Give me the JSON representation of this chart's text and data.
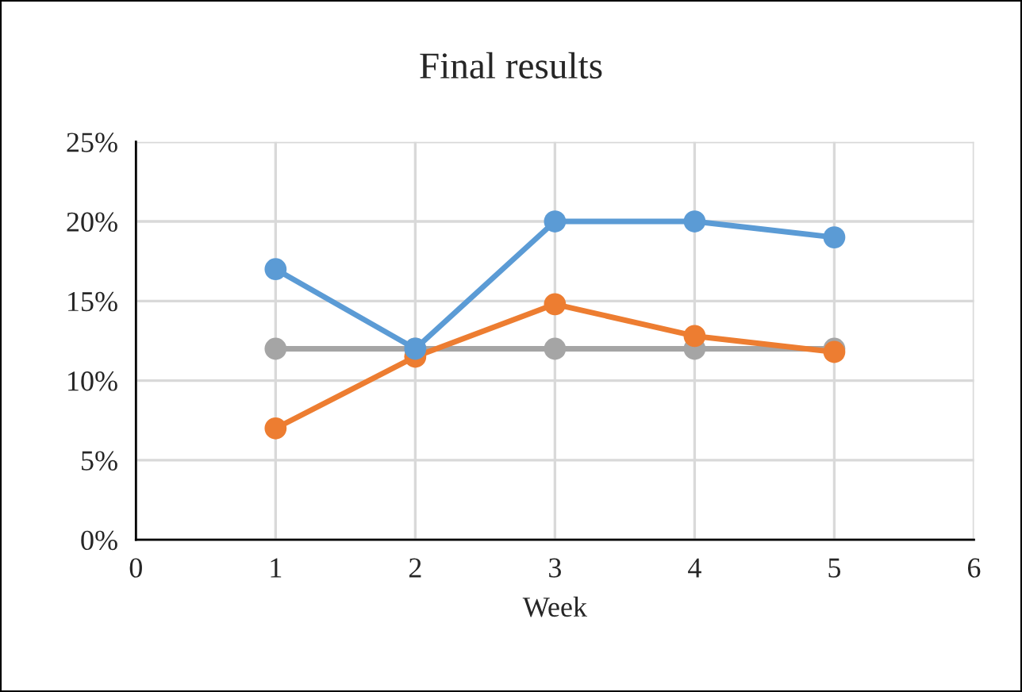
{
  "chart_data": {
    "type": "line",
    "title": "Final results",
    "xlabel": "Week",
    "x": [
      1,
      2,
      3,
      4,
      5
    ],
    "series": [
      {
        "color": "#5b9bd5",
        "values": [
          17,
          12,
          20,
          20,
          19
        ]
      },
      {
        "color": "#ed7d31",
        "values": [
          7,
          11.5,
          14.8,
          12.8,
          11.8
        ]
      },
      {
        "color": "#a5a5a5",
        "values": [
          12,
          12,
          12,
          12,
          12
        ]
      }
    ],
    "xlim": [
      0,
      6
    ],
    "xticks": [
      0,
      1,
      2,
      3,
      4,
      5,
      6
    ],
    "ylim": [
      0,
      25
    ],
    "yticks": [
      {
        "value": 0,
        "label": "0%"
      },
      {
        "value": 5,
        "label": "5%"
      },
      {
        "value": 10,
        "label": "10%"
      },
      {
        "value": 15,
        "label": "15%"
      },
      {
        "value": 20,
        "label": "20%"
      },
      {
        "value": 25,
        "label": "25%"
      }
    ],
    "grid": true,
    "marker": "circle",
    "line_style": "solid",
    "legend": false
  }
}
